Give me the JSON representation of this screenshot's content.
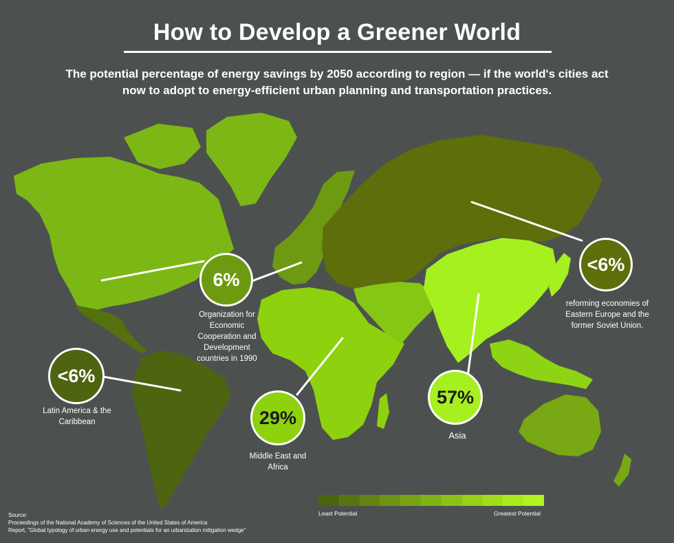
{
  "title": "How to Develop a Greener World",
  "subtitle": "The potential percentage of energy savings by 2050 according to region — if the world's cities act now to adopt to energy-efficient urban planning and transportation practices.",
  "regions": {
    "oecd": {
      "value": "6%",
      "label": "Organization for Economic Cooperation and Development countries in 1990",
      "color": "#6d9a10"
    },
    "reform": {
      "value": "<6%",
      "label": "reforming economies of Eastern Europe and the former Soviet Union.",
      "color": "#5e6e0a"
    },
    "latin": {
      "value": "<6%",
      "label": "Latin America & the Caribbean",
      "color": "#4d6410"
    },
    "mea": {
      "value": "29%",
      "label": "Middle East and Africa",
      "color": "#8ed10e"
    },
    "asia": {
      "value": "57%",
      "label": "Asia",
      "color": "#a6f01f"
    }
  },
  "legend": {
    "least": "Least Potential",
    "greatest": "Greatest Potential",
    "colors": [
      "#4b6410",
      "#587412",
      "#638413",
      "#6d9314",
      "#78a315",
      "#82b316",
      "#8cc217",
      "#96d018",
      "#a0de1a",
      "#aaea1e",
      "#b2f322"
    ]
  },
  "source": {
    "heading": "Source:",
    "line1": "Proceedings of the National Academy of Sciences of the United States of America",
    "line2": "Report, \"Global typology of urban energy use and potentials for an urbanization mitigation wedge\""
  },
  "colors": {
    "background": "#4c5150",
    "north_america": "#7db715",
    "greenland": "#7db715",
    "europe": "#6d9a10",
    "russia": "#5e6e0a",
    "latin_america": "#4d6410",
    "central_america": "#55700f",
    "africa": "#8ed10e",
    "middle_east": "#86c614",
    "asia": "#a6f01f",
    "southeast_asia": "#8fd414",
    "oceania": "#78a814"
  }
}
